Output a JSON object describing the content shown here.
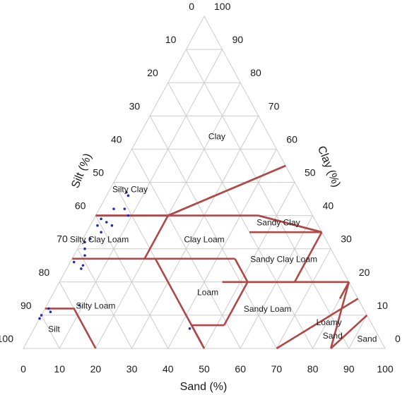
{
  "chart_data": {
    "type": "scatter",
    "subtype": "ternary",
    "title": "",
    "axes": {
      "sand": {
        "label": "Sand (%)",
        "ticks": [
          "0",
          "10",
          "20",
          "30",
          "40",
          "50",
          "60",
          "70",
          "80",
          "90",
          "100"
        ]
      },
      "clay": {
        "label": "Clay (%)",
        "ticks": [
          "0",
          "10",
          "20",
          "30",
          "40",
          "50",
          "60",
          "70",
          "80",
          "90",
          "100"
        ]
      },
      "silt": {
        "label": "Silt (%)",
        "ticks": [
          "0",
          "10",
          "20",
          "30",
          "40",
          "50",
          "60",
          "70",
          "80",
          "90",
          "100"
        ]
      }
    },
    "grid": true,
    "grid_step": 10,
    "regions": [
      {
        "name": "Clay",
        "sand": 22,
        "clay": 63
      },
      {
        "name": "Silty Clay",
        "sand": 6,
        "clay": 47
      },
      {
        "name": "Sandy Clay",
        "sand": 52,
        "clay": 37
      },
      {
        "name": "Silty Clay Loam",
        "sand": 5,
        "clay": 32
      },
      {
        "name": "Clay Loam",
        "sand": 34,
        "clay": 32
      },
      {
        "name": "Sandy Clay Loam",
        "sand": 59,
        "clay": 26
      },
      {
        "name": "Loam",
        "sand": 43,
        "clay": 16
      },
      {
        "name": "Silty Loam",
        "sand": 14,
        "clay": 12
      },
      {
        "name": "Sandy Loam",
        "sand": 62,
        "clay": 11
      },
      {
        "name": "Silt",
        "sand": 6,
        "clay": 5
      },
      {
        "name": "Loamy",
        "sand": 81,
        "clay": 7
      },
      {
        "name": "Sand",
        "sand": 84,
        "clay": 3
      },
      {
        "name": "Sand",
        "sand": 94,
        "clay": 2
      }
    ],
    "boundaries": [
      [
        [
          0,
          40
        ],
        [
          20,
          40
        ],
        [
          45,
          55
        ]
      ],
      [
        [
          20,
          40
        ],
        [
          45,
          55
        ]
      ],
      [
        [
          0,
          40
        ],
        [
          45,
          40
        ]
      ],
      [
        [
          45,
          40
        ],
        [
          65,
          35
        ]
      ],
      [
        [
          45,
          40
        ],
        [
          65,
          35
        ]
      ],
      [
        [
          45,
          35
        ],
        [
          65,
          35
        ]
      ],
      [
        [
          65,
          35
        ],
        [
          65,
          20
        ]
      ],
      [
        [
          20,
          40
        ],
        [
          20,
          27
        ],
        [
          45,
          27
        ]
      ],
      [
        [
          0,
          27
        ],
        [
          20,
          27
        ]
      ],
      [
        [
          45,
          27
        ],
        [
          52,
          20
        ]
      ],
      [
        [
          52,
          20
        ],
        [
          52,
          7
        ]
      ],
      [
        [
          52,
          7
        ],
        [
          45,
          7
        ],
        [
          43,
          7
        ]
      ],
      [
        [
          52,
          20
        ],
        [
          80,
          20
        ]
      ],
      [
        [
          80,
          20
        ],
        [
          85,
          0
        ]
      ],
      [
        [
          80,
          20
        ],
        [
          80,
          15
        ]
      ],
      [
        [
          85,
          15
        ],
        [
          70,
          0
        ]
      ],
      [
        [
          90,
          10
        ],
        [
          85,
          0
        ]
      ],
      [
        [
          20,
          27
        ],
        [
          23,
          27
        ],
        [
          50,
          0
        ]
      ],
      [
        [
          0,
          12
        ],
        [
          8,
          12
        ],
        [
          20,
          0
        ]
      ],
      [
        [
          65,
          20
        ],
        [
          45,
          20
        ]
      ],
      [
        [
          43,
          7
        ],
        [
          50,
          0
        ]
      ]
    ],
    "boundary_color": "#b04848",
    "points_color": "#1f2fa8",
    "points": [
      {
        "sand": 5,
        "clay": 47
      },
      {
        "sand": 6,
        "clay": 46
      },
      {
        "sand": 4,
        "clay": 42
      },
      {
        "sand": 7,
        "clay": 42
      },
      {
        "sand": 9,
        "clay": 40
      },
      {
        "sand": 2,
        "clay": 39
      },
      {
        "sand": 4,
        "clay": 38
      },
      {
        "sand": 6,
        "clay": 37
      },
      {
        "sand": 2,
        "clay": 37
      },
      {
        "sand": 4,
        "clay": 35
      },
      {
        "sand": 2,
        "clay": 33
      },
      {
        "sand": 1,
        "clay": 32
      },
      {
        "sand": 2,
        "clay": 30
      },
      {
        "sand": 3,
        "clay": 28
      },
      {
        "sand": 4,
        "clay": 24
      },
      {
        "sand": 1,
        "clay": 26
      },
      {
        "sand": 4,
        "clay": 25
      },
      {
        "sand": 1,
        "clay": 12
      },
      {
        "sand": 2,
        "clay": 11
      },
      {
        "sand": 9,
        "clay": 13
      },
      {
        "sand": 0,
        "clay": 10
      },
      {
        "sand": 0,
        "clay": 9
      },
      {
        "sand": 43,
        "clay": 6
      }
    ]
  }
}
